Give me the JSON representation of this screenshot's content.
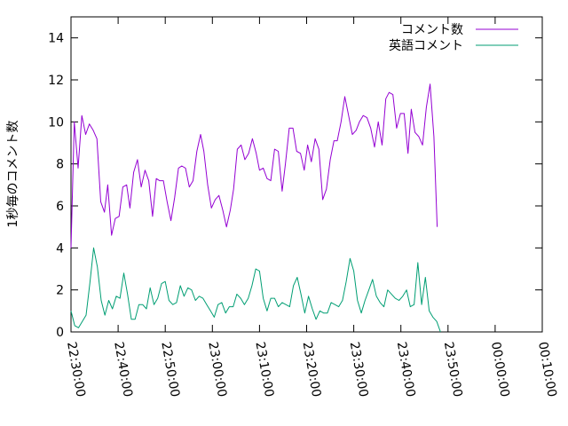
{
  "chart_data": {
    "type": "line",
    "title": "",
    "xlabel": "",
    "ylabel": "1秒毎のコメント数",
    "ylim": [
      0,
      15
    ],
    "y_ticks": [
      0,
      2,
      4,
      6,
      8,
      10,
      12,
      14
    ],
    "x_tick_labels": [
      "22:30:00",
      "22:40:00",
      "22:50:00",
      "23:00:00",
      "23:10:00",
      "23:20:00",
      "23:30:00",
      "23:40:00",
      "23:50:00",
      "00:00:00",
      "00:10:00"
    ],
    "x_unit": "minutes",
    "xlim_minutes": [
      0,
      100
    ],
    "grid": false,
    "legend_position": "top-right",
    "series": [
      {
        "name": "コメント数",
        "color": "#9400d3",
        "points": [
          [
            0.0,
            4.0
          ],
          [
            0.7,
            10.0
          ],
          [
            1.5,
            7.8
          ],
          [
            2.3,
            10.3
          ],
          [
            3.1,
            9.4
          ],
          [
            3.9,
            9.9
          ],
          [
            4.7,
            9.6
          ],
          [
            5.5,
            9.2
          ],
          [
            6.3,
            6.2
          ],
          [
            7.1,
            5.7
          ],
          [
            7.8,
            7.0
          ],
          [
            8.6,
            4.6
          ],
          [
            9.4,
            5.4
          ],
          [
            10.2,
            5.5
          ],
          [
            11.0,
            6.9
          ],
          [
            11.8,
            7.0
          ],
          [
            12.5,
            5.9
          ],
          [
            13.3,
            7.6
          ],
          [
            14.1,
            8.2
          ],
          [
            14.9,
            6.9
          ],
          [
            15.7,
            7.7
          ],
          [
            16.5,
            7.2
          ],
          [
            17.3,
            5.5
          ],
          [
            18.1,
            7.3
          ],
          [
            18.8,
            7.2
          ],
          [
            19.6,
            7.2
          ],
          [
            20.4,
            6.2
          ],
          [
            21.2,
            5.3
          ],
          [
            22.0,
            6.4
          ],
          [
            22.8,
            7.8
          ],
          [
            23.5,
            7.9
          ],
          [
            24.3,
            7.8
          ],
          [
            25.1,
            6.9
          ],
          [
            25.9,
            7.2
          ],
          [
            26.7,
            8.6
          ],
          [
            27.5,
            9.4
          ],
          [
            28.2,
            8.6
          ],
          [
            29.0,
            7.0
          ],
          [
            29.8,
            5.9
          ],
          [
            30.6,
            6.3
          ],
          [
            31.4,
            6.5
          ],
          [
            32.2,
            5.8
          ],
          [
            33.0,
            5.0
          ],
          [
            33.8,
            5.8
          ],
          [
            34.5,
            6.8
          ],
          [
            35.3,
            8.7
          ],
          [
            36.1,
            8.9
          ],
          [
            36.9,
            8.2
          ],
          [
            37.7,
            8.5
          ],
          [
            38.5,
            9.2
          ],
          [
            39.3,
            8.5
          ],
          [
            40.0,
            7.7
          ],
          [
            40.8,
            7.8
          ],
          [
            41.6,
            7.3
          ],
          [
            42.4,
            7.2
          ],
          [
            43.2,
            8.7
          ],
          [
            44.0,
            8.6
          ],
          [
            44.8,
            6.7
          ],
          [
            45.5,
            8.0
          ],
          [
            46.3,
            9.7
          ],
          [
            47.1,
            9.7
          ],
          [
            47.9,
            8.6
          ],
          [
            48.7,
            8.5
          ],
          [
            49.5,
            7.7
          ],
          [
            50.2,
            8.9
          ],
          [
            51.0,
            8.1
          ],
          [
            51.8,
            9.2
          ],
          [
            52.6,
            8.7
          ],
          [
            53.4,
            6.3
          ],
          [
            54.2,
            6.8
          ],
          [
            55.0,
            8.2
          ],
          [
            55.8,
            9.1
          ],
          [
            56.5,
            9.1
          ],
          [
            57.3,
            10.0
          ],
          [
            58.1,
            11.2
          ],
          [
            58.9,
            10.3
          ],
          [
            59.7,
            9.4
          ],
          [
            60.5,
            9.6
          ],
          [
            61.2,
            10.0
          ],
          [
            62.0,
            10.3
          ],
          [
            62.8,
            10.2
          ],
          [
            63.6,
            9.7
          ],
          [
            64.4,
            8.8
          ],
          [
            65.2,
            10.0
          ],
          [
            66.0,
            8.9
          ],
          [
            66.8,
            11.1
          ],
          [
            67.5,
            11.4
          ],
          [
            68.3,
            11.3
          ],
          [
            69.1,
            9.7
          ],
          [
            69.9,
            10.4
          ],
          [
            70.7,
            10.4
          ],
          [
            71.5,
            8.5
          ],
          [
            72.2,
            10.6
          ],
          [
            73.0,
            9.5
          ],
          [
            73.8,
            9.3
          ],
          [
            74.6,
            8.9
          ],
          [
            75.4,
            10.7
          ],
          [
            76.2,
            11.8
          ],
          [
            77.0,
            9.3
          ],
          [
            77.7,
            5.0
          ]
        ]
      },
      {
        "name": "英語コメント",
        "color": "#009e73",
        "points": [
          [
            0.0,
            1.0
          ],
          [
            0.8,
            0.3
          ],
          [
            1.6,
            0.2
          ],
          [
            2.4,
            0.5
          ],
          [
            3.2,
            0.8
          ],
          [
            4.0,
            2.3
          ],
          [
            4.8,
            4.0
          ],
          [
            5.6,
            3.1
          ],
          [
            6.4,
            1.5
          ],
          [
            7.2,
            0.8
          ],
          [
            8.0,
            1.5
          ],
          [
            8.8,
            1.1
          ],
          [
            9.6,
            1.7
          ],
          [
            10.4,
            1.6
          ],
          [
            11.2,
            2.8
          ],
          [
            12.0,
            1.8
          ],
          [
            12.8,
            0.6
          ],
          [
            13.6,
            0.6
          ],
          [
            14.4,
            1.3
          ],
          [
            15.2,
            1.3
          ],
          [
            16.0,
            1.1
          ],
          [
            16.8,
            2.1
          ],
          [
            17.6,
            1.3
          ],
          [
            18.4,
            1.6
          ],
          [
            19.2,
            2.3
          ],
          [
            20.0,
            2.4
          ],
          [
            20.8,
            1.5
          ],
          [
            21.6,
            1.3
          ],
          [
            22.4,
            1.4
          ],
          [
            23.2,
            2.2
          ],
          [
            24.0,
            1.7
          ],
          [
            24.8,
            2.1
          ],
          [
            25.6,
            2.0
          ],
          [
            26.4,
            1.5
          ],
          [
            27.2,
            1.7
          ],
          [
            28.0,
            1.6
          ],
          [
            28.8,
            1.3
          ],
          [
            29.6,
            1.0
          ],
          [
            30.4,
            0.7
          ],
          [
            31.2,
            1.3
          ],
          [
            32.0,
            1.4
          ],
          [
            32.8,
            0.9
          ],
          [
            33.6,
            1.2
          ],
          [
            34.4,
            1.2
          ],
          [
            35.2,
            1.8
          ],
          [
            36.0,
            1.6
          ],
          [
            36.8,
            1.3
          ],
          [
            37.6,
            1.6
          ],
          [
            38.4,
            2.2
          ],
          [
            39.2,
            3.0
          ],
          [
            40.0,
            2.9
          ],
          [
            40.8,
            1.6
          ],
          [
            41.6,
            1.0
          ],
          [
            42.4,
            1.6
          ],
          [
            43.2,
            1.6
          ],
          [
            44.0,
            1.2
          ],
          [
            44.8,
            1.4
          ],
          [
            45.6,
            1.3
          ],
          [
            46.4,
            1.2
          ],
          [
            47.2,
            2.2
          ],
          [
            48.0,
            2.6
          ],
          [
            48.8,
            1.8
          ],
          [
            49.6,
            0.9
          ],
          [
            50.4,
            1.7
          ],
          [
            51.2,
            1.1
          ],
          [
            52.0,
            0.6
          ],
          [
            52.8,
            1.0
          ],
          [
            53.6,
            0.9
          ],
          [
            54.4,
            0.9
          ],
          [
            55.2,
            1.4
          ],
          [
            56.0,
            1.3
          ],
          [
            56.8,
            1.2
          ],
          [
            57.6,
            1.5
          ],
          [
            58.4,
            2.4
          ],
          [
            59.2,
            3.5
          ],
          [
            60.0,
            2.9
          ],
          [
            60.8,
            1.5
          ],
          [
            61.6,
            0.9
          ],
          [
            62.4,
            1.5
          ],
          [
            63.2,
            2.0
          ],
          [
            64.0,
            2.5
          ],
          [
            64.8,
            1.7
          ],
          [
            65.6,
            1.4
          ],
          [
            66.4,
            1.2
          ],
          [
            67.2,
            2.0
          ],
          [
            68.0,
            1.8
          ],
          [
            68.8,
            1.6
          ],
          [
            69.6,
            1.5
          ],
          [
            70.4,
            1.7
          ],
          [
            71.2,
            2.0
          ],
          [
            72.0,
            1.2
          ],
          [
            72.8,
            1.3
          ],
          [
            73.6,
            3.3
          ],
          [
            74.4,
            1.3
          ],
          [
            75.2,
            2.6
          ],
          [
            76.0,
            1.0
          ],
          [
            76.8,
            0.7
          ],
          [
            77.6,
            0.5
          ],
          [
            78.4,
            0.0
          ]
        ]
      }
    ]
  }
}
